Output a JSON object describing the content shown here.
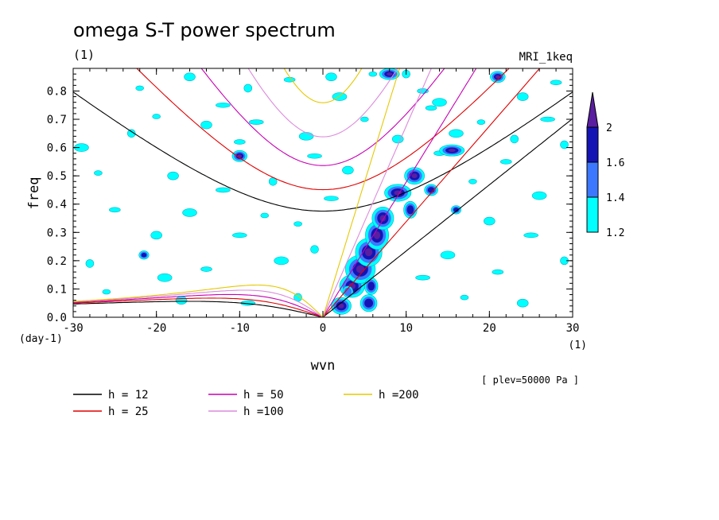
{
  "chart_data": {
    "type": "contour",
    "title": "omega S-T power spectrum",
    "subtitle": "(1)",
    "model_label": "MRI_1keq",
    "xlabel": "wvn",
    "ylabel": "freq",
    "x_unit": "(1)",
    "y_unit": "(day-1)",
    "xlim": [
      -30,
      30
    ],
    "ylim": [
      0,
      0.88
    ],
    "x_ticks": [
      -30,
      -20,
      -10,
      0,
      10,
      20,
      30
    ],
    "y_ticks": [
      0.0,
      0.1,
      0.2,
      0.3,
      0.4,
      0.5,
      0.6,
      0.7,
      0.8
    ],
    "x_tick_labels": [
      "-30",
      "-20",
      "-10",
      "0",
      "10",
      "20",
      "30"
    ],
    "y_tick_labels": [
      "0.0",
      "0.1",
      "0.2",
      "0.3",
      "0.4",
      "0.5",
      "0.6",
      "0.7",
      "0.8"
    ],
    "plev_note": "[ plev=50000 Pa ]",
    "colorbar": {
      "levels": [
        1.2,
        1.4,
        1.6,
        2
      ],
      "labels": [
        "1.2",
        "1.4",
        "1.6",
        "2"
      ],
      "colors": [
        "#00ffff",
        "#3c78ff",
        "#1414b4",
        "#5a1ea0"
      ]
    },
    "dispersion_curves": [
      {
        "name": "h = 12",
        "h": 12,
        "color": "#000000"
      },
      {
        "name": "h = 25",
        "h": 25,
        "color": "#e00000"
      },
      {
        "name": "h = 50",
        "h": 50,
        "color": "#c800b4"
      },
      {
        "name": "h =100",
        "h": 100,
        "color": "#dc8cdc"
      },
      {
        "name": "h =200",
        "h": 200,
        "color": "#e6c800"
      }
    ],
    "blobs": [
      {
        "x": 2.2,
        "y": 0.04,
        "rx": 1.2,
        "ry": 0.03,
        "level": 3
      },
      {
        "x": 3.5,
        "y": 0.11,
        "rx": 1.5,
        "ry": 0.04,
        "level": 3
      },
      {
        "x": 4.5,
        "y": 0.17,
        "rx": 1.8,
        "ry": 0.05,
        "level": 3
      },
      {
        "x": 5.5,
        "y": 0.23,
        "rx": 1.6,
        "ry": 0.05,
        "level": 3
      },
      {
        "x": 6.5,
        "y": 0.29,
        "rx": 1.4,
        "ry": 0.05,
        "level": 3
      },
      {
        "x": 7.2,
        "y": 0.35,
        "rx": 1.3,
        "ry": 0.04,
        "level": 3
      },
      {
        "x": 9.0,
        "y": 0.44,
        "rx": 1.6,
        "ry": 0.03,
        "level": 3
      },
      {
        "x": 11.0,
        "y": 0.5,
        "rx": 1.2,
        "ry": 0.03,
        "level": 3
      },
      {
        "x": 15.5,
        "y": 0.59,
        "rx": 1.5,
        "ry": 0.02,
        "level": 3
      },
      {
        "x": 8.0,
        "y": 0.86,
        "rx": 1.2,
        "ry": 0.02,
        "level": 3
      },
      {
        "x": 5.5,
        "y": 0.05,
        "rx": 1.0,
        "ry": 0.03,
        "level": 2
      },
      {
        "x": 5.8,
        "y": 0.11,
        "rx": 0.8,
        "ry": 0.03,
        "level": 2
      },
      {
        "x": 10.5,
        "y": 0.38,
        "rx": 0.8,
        "ry": 0.03,
        "level": 2
      },
      {
        "x": 13.0,
        "y": 0.45,
        "rx": 0.8,
        "ry": 0.02,
        "level": 2
      },
      {
        "x": 21.0,
        "y": 0.85,
        "rx": 0.9,
        "ry": 0.02,
        "level": 3
      },
      {
        "x": -10.0,
        "y": 0.57,
        "rx": 0.9,
        "ry": 0.02,
        "level": 3
      },
      {
        "x": 3.0,
        "y": 0.09,
        "rx": 0.6,
        "ry": 0.02,
        "level": 1
      },
      {
        "x": -21.5,
        "y": 0.22,
        "rx": 0.6,
        "ry": 0.015,
        "level": 2
      },
      {
        "x": 16.0,
        "y": 0.38,
        "rx": 0.6,
        "ry": 0.015,
        "level": 2
      }
    ],
    "speckles": [
      [
        -22,
        0.81
      ],
      [
        -16,
        0.85
      ],
      [
        -12,
        0.75
      ],
      [
        -9,
        0.81
      ],
      [
        -4,
        0.84
      ],
      [
        2,
        0.78
      ],
      [
        -20,
        0.71
      ],
      [
        -14,
        0.68
      ],
      [
        -8,
        0.69
      ],
      [
        -23,
        0.65
      ],
      [
        -10,
        0.62
      ],
      [
        -2,
        0.64
      ],
      [
        -27,
        0.51
      ],
      [
        -18,
        0.5
      ],
      [
        -12,
        0.45
      ],
      [
        -6,
        0.48
      ],
      [
        -25,
        0.38
      ],
      [
        -16,
        0.37
      ],
      [
        -3,
        0.33
      ],
      [
        -20,
        0.29
      ],
      [
        -10,
        0.29
      ],
      [
        -28,
        0.19
      ],
      [
        -14,
        0.17
      ],
      [
        -5,
        0.2
      ],
      [
        -26,
        0.09
      ],
      [
        -17,
        0.06
      ],
      [
        -9,
        0.05
      ],
      [
        -3,
        0.07
      ],
      [
        13,
        0.74
      ],
      [
        16,
        0.65
      ],
      [
        19,
        0.69
      ],
      [
        24,
        0.78
      ],
      [
        27,
        0.7
      ],
      [
        29,
        0.61
      ],
      [
        22,
        0.55
      ],
      [
        26,
        0.43
      ],
      [
        18,
        0.48
      ],
      [
        20,
        0.34
      ],
      [
        25,
        0.29
      ],
      [
        29,
        0.2
      ],
      [
        21,
        0.16
      ],
      [
        15,
        0.22
      ],
      [
        17,
        0.07
      ],
      [
        24,
        0.05
      ],
      [
        12,
        0.14
      ],
      [
        10,
        0.86
      ],
      [
        12,
        0.8
      ],
      [
        14,
        0.76
      ],
      [
        5,
        0.7
      ],
      [
        3,
        0.52
      ],
      [
        1,
        0.42
      ],
      [
        -1,
        0.24
      ],
      [
        28,
        0.83
      ],
      [
        -29,
        0.6
      ],
      [
        -7,
        0.36
      ],
      [
        9,
        0.63
      ],
      [
        -1,
        0.57
      ],
      [
        23,
        0.63
      ],
      [
        14,
        0.58
      ],
      [
        -19,
        0.14
      ],
      [
        6,
        0.86
      ],
      [
        1,
        0.85
      ]
    ]
  },
  "footer": {
    "legend_entries": [
      "h = 12",
      "h = 25",
      "h = 50",
      "h =100",
      "h =200"
    ]
  }
}
